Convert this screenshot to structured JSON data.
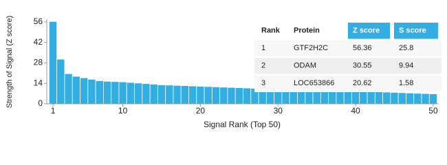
{
  "chart_data": {
    "type": "bar",
    "x_label": "Signal Rank (Top 50)",
    "y_label": "Strength of Signal (Z score)",
    "x": [
      1,
      2,
      3,
      4,
      5,
      6,
      7,
      8,
      9,
      10,
      11,
      12,
      13,
      14,
      15,
      16,
      17,
      18,
      19,
      20,
      21,
      22,
      23,
      24,
      25,
      26,
      27,
      28,
      29,
      30,
      31,
      32,
      33,
      34,
      35,
      36,
      37,
      38,
      39,
      40,
      41,
      42,
      43,
      44,
      45,
      46,
      47,
      48,
      49,
      50
    ],
    "values": [
      56.36,
      30.55,
      20.62,
      18.8,
      17.8,
      16.8,
      15.8,
      15.4,
      15.2,
      15,
      14.6,
      14.2,
      13.8,
      13.4,
      13,
      12.8,
      12.6,
      12.4,
      12.2,
      12,
      11.8,
      11.6,
      11.4,
      11.2,
      11,
      10.8,
      10.6,
      10.2,
      10,
      9.8,
      9.7,
      9.6,
      9.5,
      9.4,
      9.3,
      9.2,
      9.1,
      9,
      8.9,
      8.8,
      8.6,
      8.4,
      8.2,
      8,
      7.8,
      7.6,
      7.4,
      7.2,
      7,
      6.8
    ],
    "color": "#33aee3",
    "xlim": [
      0.5,
      50.5
    ],
    "xticks": [
      1,
      10,
      20,
      30,
      40,
      50
    ],
    "ylim": [
      0,
      56
    ],
    "yticks": [
      0,
      14,
      28,
      42,
      56
    ],
    "table": {
      "columns": [
        "Rank",
        "Protein",
        "Z score",
        "S score"
      ],
      "rows": [
        [
          1,
          "GTF2H2C",
          56.36,
          25.8
        ],
        [
          2,
          "ODAM",
          30.55,
          9.94
        ],
        [
          3,
          "LOC653866",
          20.62,
          1.58
        ]
      ]
    }
  }
}
